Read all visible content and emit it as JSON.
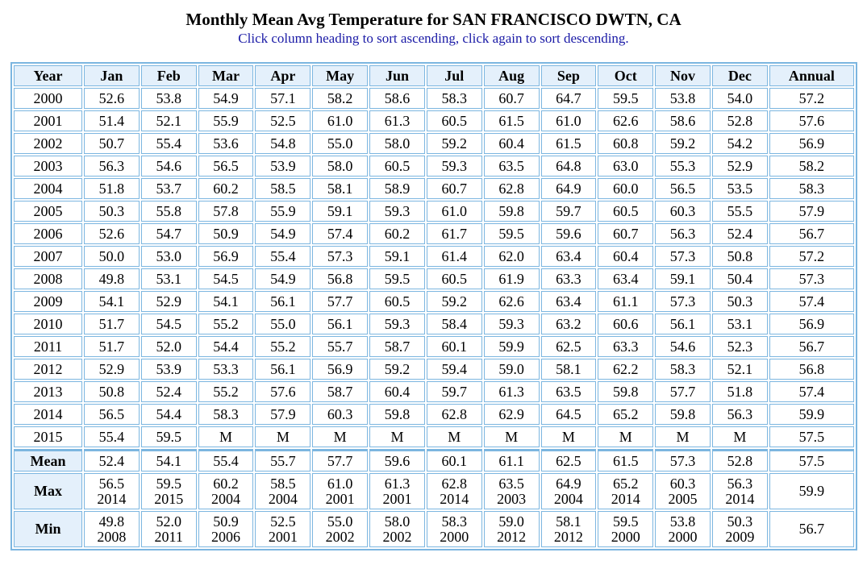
{
  "title": "Monthly Mean Avg Temperature for SAN FRANCISCO DWTN, CA",
  "subtitle": "Click column heading to sort ascending, click again to sort descending.",
  "headers": [
    "Year",
    "Jan",
    "Feb",
    "Mar",
    "Apr",
    "May",
    "Jun",
    "Jul",
    "Aug",
    "Sep",
    "Oct",
    "Nov",
    "Dec",
    "Annual"
  ],
  "rows": [
    [
      "2000",
      "52.6",
      "53.8",
      "54.9",
      "57.1",
      "58.2",
      "58.6",
      "58.3",
      "60.7",
      "64.7",
      "59.5",
      "53.8",
      "54.0",
      "57.2"
    ],
    [
      "2001",
      "51.4",
      "52.1",
      "55.9",
      "52.5",
      "61.0",
      "61.3",
      "60.5",
      "61.5",
      "61.0",
      "62.6",
      "58.6",
      "52.8",
      "57.6"
    ],
    [
      "2002",
      "50.7",
      "55.4",
      "53.6",
      "54.8",
      "55.0",
      "58.0",
      "59.2",
      "60.4",
      "61.5",
      "60.8",
      "59.2",
      "54.2",
      "56.9"
    ],
    [
      "2003",
      "56.3",
      "54.6",
      "56.5",
      "53.9",
      "58.0",
      "60.5",
      "59.3",
      "63.5",
      "64.8",
      "63.0",
      "55.3",
      "52.9",
      "58.2"
    ],
    [
      "2004",
      "51.8",
      "53.7",
      "60.2",
      "58.5",
      "58.1",
      "58.9",
      "60.7",
      "62.8",
      "64.9",
      "60.0",
      "56.5",
      "53.5",
      "58.3"
    ],
    [
      "2005",
      "50.3",
      "55.8",
      "57.8",
      "55.9",
      "59.1",
      "59.3",
      "61.0",
      "59.8",
      "59.7",
      "60.5",
      "60.3",
      "55.5",
      "57.9"
    ],
    [
      "2006",
      "52.6",
      "54.7",
      "50.9",
      "54.9",
      "57.4",
      "60.2",
      "61.7",
      "59.5",
      "59.6",
      "60.7",
      "56.3",
      "52.4",
      "56.7"
    ],
    [
      "2007",
      "50.0",
      "53.0",
      "56.9",
      "55.4",
      "57.3",
      "59.1",
      "61.4",
      "62.0",
      "63.4",
      "60.4",
      "57.3",
      "50.8",
      "57.2"
    ],
    [
      "2008",
      "49.8",
      "53.1",
      "54.5",
      "54.9",
      "56.8",
      "59.5",
      "60.5",
      "61.9",
      "63.3",
      "63.4",
      "59.1",
      "50.4",
      "57.3"
    ],
    [
      "2009",
      "54.1",
      "52.9",
      "54.1",
      "56.1",
      "57.7",
      "60.5",
      "59.2",
      "62.6",
      "63.4",
      "61.1",
      "57.3",
      "50.3",
      "57.4"
    ],
    [
      "2010",
      "51.7",
      "54.5",
      "55.2",
      "55.0",
      "56.1",
      "59.3",
      "58.4",
      "59.3",
      "63.2",
      "60.6",
      "56.1",
      "53.1",
      "56.9"
    ],
    [
      "2011",
      "51.7",
      "52.0",
      "54.4",
      "55.2",
      "55.7",
      "58.7",
      "60.1",
      "59.9",
      "62.5",
      "63.3",
      "54.6",
      "52.3",
      "56.7"
    ],
    [
      "2012",
      "52.9",
      "53.9",
      "53.3",
      "56.1",
      "56.9",
      "59.2",
      "59.4",
      "59.0",
      "58.1",
      "62.2",
      "58.3",
      "52.1",
      "56.8"
    ],
    [
      "2013",
      "50.8",
      "52.4",
      "55.2",
      "57.6",
      "58.7",
      "60.4",
      "59.7",
      "61.3",
      "63.5",
      "59.8",
      "57.7",
      "51.8",
      "57.4"
    ],
    [
      "2014",
      "56.5",
      "54.4",
      "58.3",
      "57.9",
      "60.3",
      "59.8",
      "62.8",
      "62.9",
      "64.5",
      "65.2",
      "59.8",
      "56.3",
      "59.9"
    ],
    [
      "2015",
      "55.4",
      "59.5",
      "M",
      "M",
      "M",
      "M",
      "M",
      "M",
      "M",
      "M",
      "M",
      "M",
      "57.5"
    ]
  ],
  "mean": {
    "label": "Mean",
    "values": [
      "52.4",
      "54.1",
      "55.4",
      "55.7",
      "57.7",
      "59.6",
      "60.1",
      "61.1",
      "62.5",
      "61.5",
      "57.3",
      "52.8",
      "57.5"
    ]
  },
  "max": {
    "label": "Max",
    "values": [
      [
        "56.5",
        "2014"
      ],
      [
        "59.5",
        "2015"
      ],
      [
        "60.2",
        "2004"
      ],
      [
        "58.5",
        "2004"
      ],
      [
        "61.0",
        "2001"
      ],
      [
        "61.3",
        "2001"
      ],
      [
        "62.8",
        "2014"
      ],
      [
        "63.5",
        "2003"
      ],
      [
        "64.9",
        "2004"
      ],
      [
        "65.2",
        "2014"
      ],
      [
        "60.3",
        "2005"
      ],
      [
        "56.3",
        "2014"
      ]
    ],
    "annual": "59.9"
  },
  "min": {
    "label": "Min",
    "values": [
      [
        "49.8",
        "2008"
      ],
      [
        "52.0",
        "2011"
      ],
      [
        "50.9",
        "2006"
      ],
      [
        "52.5",
        "2001"
      ],
      [
        "55.0",
        "2002"
      ],
      [
        "58.0",
        "2002"
      ],
      [
        "58.3",
        "2000"
      ],
      [
        "59.0",
        "2012"
      ],
      [
        "58.1",
        "2012"
      ],
      [
        "59.5",
        "2000"
      ],
      [
        "53.8",
        "2000"
      ],
      [
        "50.3",
        "2009"
      ]
    ],
    "annual": "56.7"
  }
}
